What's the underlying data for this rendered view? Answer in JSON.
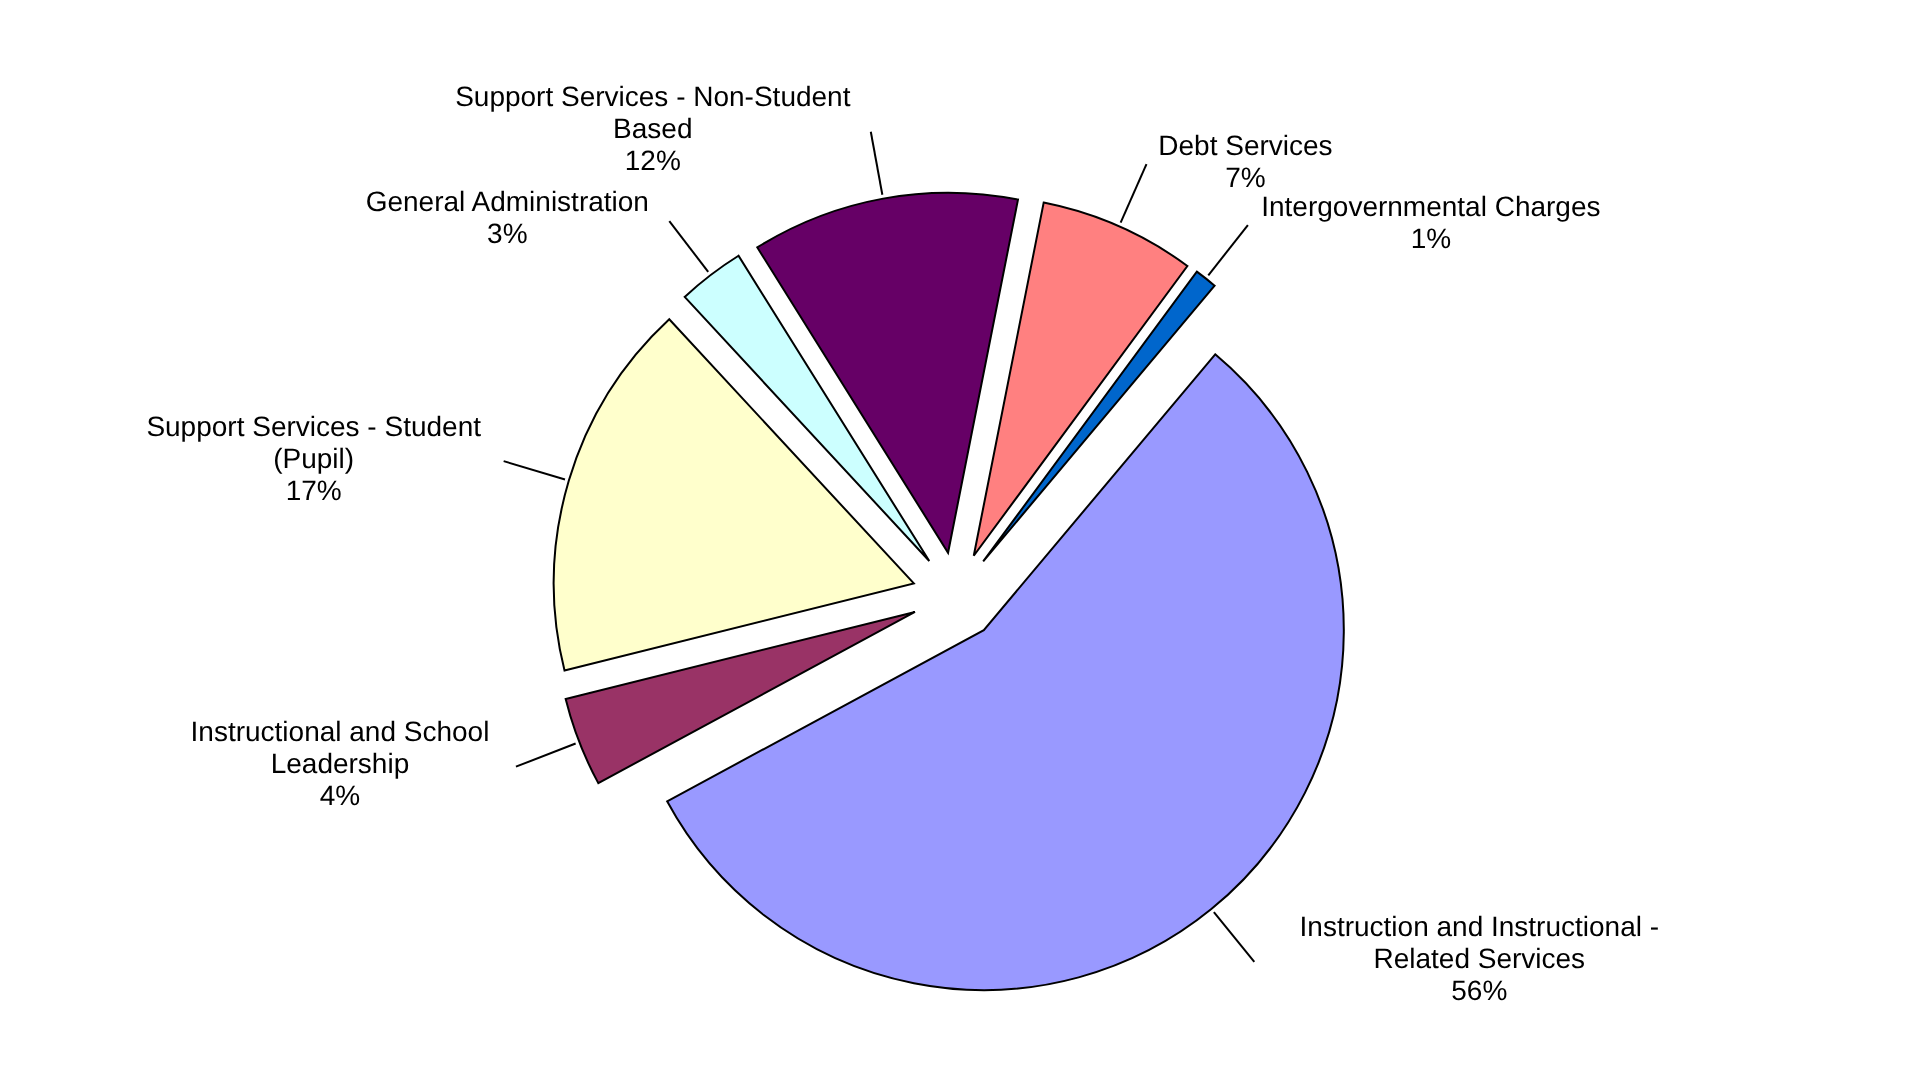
{
  "chart_data": {
    "type": "pie",
    "categories": [
      "Intergovernmental Charges",
      "Instruction and Instructional - Related Services",
      "Instructional and School Leadership",
      "Support Services - Student (Pupil)",
      "General Administration",
      "Support Services - Non-Student Based",
      "Debt Services"
    ],
    "values": [
      1,
      56,
      4,
      17,
      3,
      12,
      7
    ],
    "colors": [
      "#0066cc",
      "#9999ff",
      "#993366",
      "#ffffcc",
      "#ccffff",
      "#660066",
      "#ff8080"
    ],
    "value_labels": [
      "1%",
      "56%",
      "4%",
      "17%",
      "3%",
      "12%",
      "7%"
    ]
  }
}
